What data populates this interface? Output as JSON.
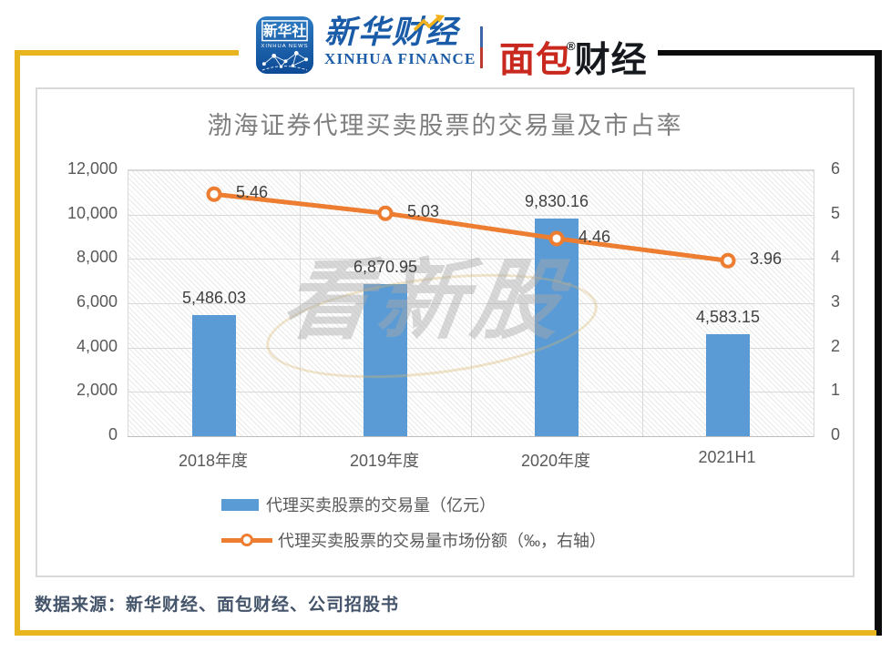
{
  "header": {
    "badge": {
      "cn": "新华社",
      "en": "XINHUA NEWS"
    },
    "finance": {
      "cn": "新华财经",
      "en": "XINHUA FINANCE"
    },
    "bread": {
      "cn_red": "面包",
      "reg": "®",
      "cn_black": "财经"
    }
  },
  "chart_data": {
    "type": "bar+line",
    "title": "渤海证券代理买卖股票的交易量及市占率",
    "categories": [
      "2018年度",
      "2019年度",
      "2020年度",
      "2021H1"
    ],
    "series": [
      {
        "name": "代理买卖股票的交易量（亿元）",
        "type": "bar",
        "axis": "left",
        "values": [
          5486.03,
          6870.95,
          9830.16,
          4583.15
        ],
        "labels": [
          "5,486.03",
          "6,870.95",
          "9,830.16",
          "4,583.15"
        ],
        "color": "#5B9BD5"
      },
      {
        "name": "代理买卖股票的交易量市场份额（‰，右轴）",
        "type": "line",
        "axis": "right",
        "values": [
          5.46,
          5.03,
          4.46,
          3.96
        ],
        "labels": [
          "5.46",
          "5.03",
          "4.46",
          "3.96"
        ],
        "color": "#ED7D31"
      }
    ],
    "left_axis": {
      "min": 0,
      "max": 12000,
      "step": 2000,
      "tick_labels": [
        "0",
        "2,000",
        "4,000",
        "6,000",
        "8,000",
        "10,000",
        "12,000"
      ]
    },
    "right_axis": {
      "min": 0,
      "max": 6,
      "step": 1,
      "tick_labels": [
        "0",
        "1",
        "2",
        "3",
        "4",
        "5",
        "6"
      ]
    },
    "grid": true,
    "plot_background": "diagonal-hatch",
    "legend_position": "bottom"
  },
  "watermark": "看新股",
  "footer": {
    "source": "数据来源：新华财经、面包财经、公司招股书"
  },
  "colors": {
    "frame_gold": "#E9B51F",
    "frame_black": "#0B0B0B",
    "bar_blue": "#5B9BD5",
    "line_orange": "#ED7D31",
    "xinhua_blue": "#1A5CA8",
    "bread_red": "#C9281E",
    "footer_navy": "#44546A",
    "title_gray": "#7F7F7F",
    "axis_gray": "#595959"
  }
}
